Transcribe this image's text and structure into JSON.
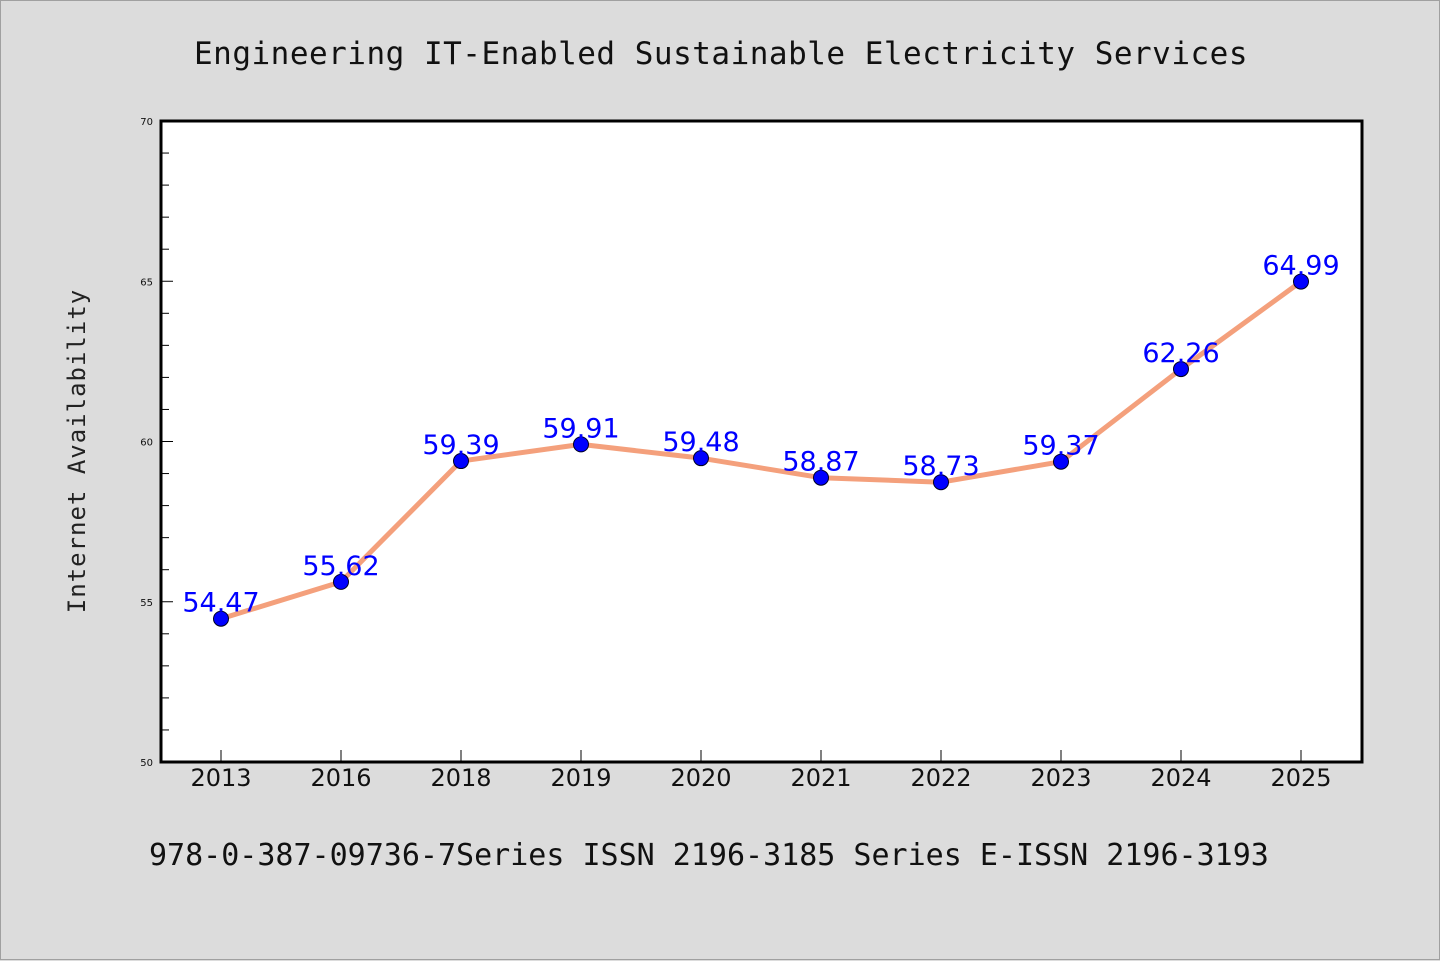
{
  "colors": {
    "background": "#dcdcdc",
    "plot_area": "#ffffff",
    "line": "#f4a07c",
    "marker": "#0000ff",
    "data_label": "#0000ff"
  },
  "chart_data": {
    "type": "line",
    "title": "Engineering IT-Enabled Sustainable Electricity Services",
    "xlabel": "",
    "ylabel": "Internet Availability",
    "categories": [
      "2013",
      "2016",
      "2018",
      "2019",
      "2020",
      "2021",
      "2022",
      "2023",
      "2024",
      "2025"
    ],
    "series": [
      {
        "values": [
          54.47,
          55.62,
          59.39,
          59.91,
          59.48,
          58.87,
          58.73,
          59.37,
          62.26,
          64.99
        ],
        "labels": [
          "54.47",
          "55.62",
          "59.39",
          "59.91",
          "59.48",
          "58.87",
          "58.73",
          "59.37",
          "62.26",
          "64.99"
        ]
      }
    ],
    "ylim": [
      50,
      70
    ],
    "yticks": [
      50,
      55,
      60,
      65,
      70
    ],
    "ytick_labels": [
      "50",
      "55",
      "60",
      "65",
      "70"
    ],
    "grid": false,
    "legend": "none"
  },
  "footer": {
    "text": "978-0-387-09736-7Series ISSN 2196-3185 Series E-ISSN 2196-3193"
  }
}
